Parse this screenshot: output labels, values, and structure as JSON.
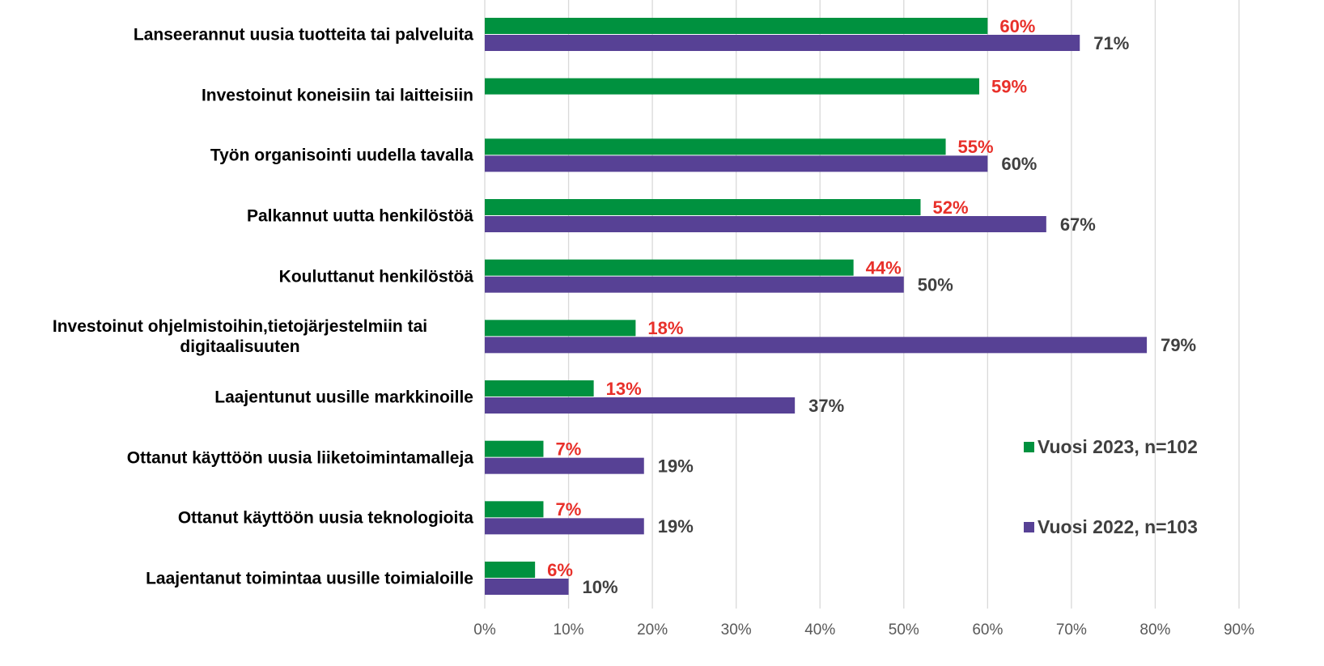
{
  "chart_data": {
    "type": "hbar",
    "categories": [
      "Lanseerannut uusia tuotteita tai palveluita",
      "Investoinut koneisiin tai laitteisiin",
      "Työn organisointi uudella tavalla",
      "Palkannut uutta henkilöstöä",
      "Kouluttanut henkilöstöä",
      "Investoinut ohjelmistoihin,tietojärjestelmiin tai digitaalisuuten",
      "Laajentunut uusille markkinoille",
      "Ottanut käyttöön uusia liiketoimintamalleja",
      "Ottanut käyttöön uusia teknologioita",
      "Laajentanut toimintaa uusille toimialoille"
    ],
    "series": [
      {
        "name": "Vuosi 2023, n=102",
        "color": "#00913f",
        "label_color": "#e8302a",
        "values": [
          60,
          59,
          55,
          52,
          44,
          18,
          13,
          7,
          7,
          6
        ],
        "value_labels": [
          "60%",
          "59%",
          "55%",
          "52%",
          "44%",
          "18%",
          "13%",
          "7%",
          "7%",
          "6%"
        ]
      },
      {
        "name": "Vuosi 2022, n=103",
        "color": "#574195",
        "label_color": "#404040",
        "values": [
          71,
          null,
          60,
          67,
          50,
          79,
          37,
          19,
          19,
          10
        ],
        "value_labels": [
          "71%",
          null,
          "60%",
          "67%",
          "50%",
          "79%",
          "37%",
          "19%",
          "19%",
          "10%"
        ]
      }
    ],
    "xlim": [
      0,
      90
    ],
    "xticks": [
      {
        "value": 0,
        "label": "0%"
      },
      {
        "value": 10,
        "label": "10%"
      },
      {
        "value": 20,
        "label": "20%"
      },
      {
        "value": 30,
        "label": "30%"
      },
      {
        "value": 40,
        "label": "40%"
      },
      {
        "value": 50,
        "label": "50%"
      },
      {
        "value": 60,
        "label": "60%"
      },
      {
        "value": 70,
        "label": "70%"
      },
      {
        "value": 80,
        "label": "80%"
      },
      {
        "value": 90,
        "label": "90%"
      }
    ],
    "grid": true,
    "legend": "right"
  }
}
